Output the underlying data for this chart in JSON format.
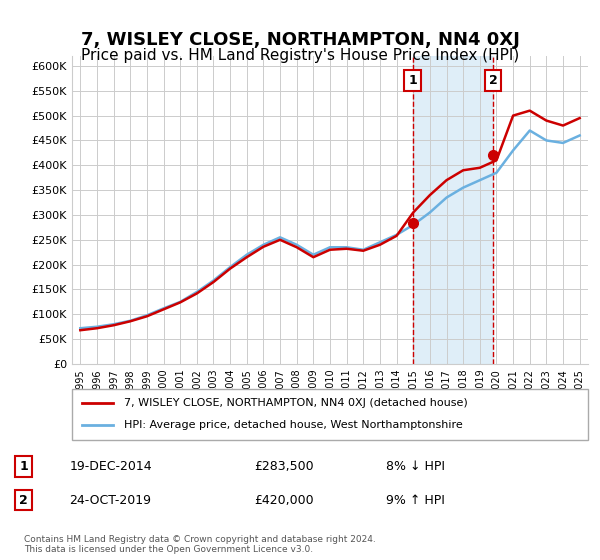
{
  "title": "7, WISLEY CLOSE, NORTHAMPTON, NN4 0XJ",
  "subtitle": "Price paid vs. HM Land Registry's House Price Index (HPI)",
  "title_fontsize": 13,
  "subtitle_fontsize": 11,
  "ylabel": "",
  "ylim": [
    0,
    620000
  ],
  "yticks": [
    0,
    50000,
    100000,
    150000,
    200000,
    250000,
    300000,
    350000,
    400000,
    450000,
    500000,
    550000,
    600000
  ],
  "ytick_labels": [
    "£0",
    "£50K",
    "£100K",
    "£150K",
    "£200K",
    "£250K",
    "£300K",
    "£350K",
    "£400K",
    "£450K",
    "£500K",
    "£550K",
    "£600K"
  ],
  "hpi_color": "#6ab0e0",
  "price_color": "#cc0000",
  "shading_color": "#d8eaf7",
  "grid_color": "#cccccc",
  "annotation1_date": "19-DEC-2014",
  "annotation1_price": "£283,500",
  "annotation1_hpi": "8% ↓ HPI",
  "annotation2_date": "24-OCT-2019",
  "annotation2_price": "£420,000",
  "annotation2_hpi": "9% ↑ HPI",
  "sale1_year": 2014.96,
  "sale1_value": 283500,
  "sale2_year": 2019.81,
  "sale2_value": 420000,
  "legend_label_price": "7, WISLEY CLOSE, NORTHAMPTON, NN4 0XJ (detached house)",
  "legend_label_hpi": "HPI: Average price, detached house, West Northamptonshire",
  "copyright_text": "Contains HM Land Registry data © Crown copyright and database right 2024.\nThis data is licensed under the Open Government Licence v3.0.",
  "hpi_years": [
    1995,
    1996,
    1997,
    1998,
    1999,
    2000,
    2001,
    2002,
    2003,
    2004,
    2005,
    2006,
    2007,
    2008,
    2009,
    2010,
    2011,
    2012,
    2013,
    2014,
    2015,
    2016,
    2017,
    2018,
    2019,
    2020,
    2021,
    2022,
    2023,
    2024,
    2025
  ],
  "hpi_values": [
    72000,
    75000,
    80000,
    87000,
    98000,
    112000,
    125000,
    145000,
    168000,
    195000,
    220000,
    240000,
    255000,
    240000,
    220000,
    235000,
    235000,
    230000,
    245000,
    260000,
    280000,
    305000,
    335000,
    355000,
    370000,
    385000,
    430000,
    470000,
    450000,
    445000,
    460000
  ],
  "price_years": [
    1995,
    1996,
    1997,
    1998,
    1999,
    2000,
    2001,
    2002,
    2003,
    2004,
    2005,
    2006,
    2007,
    2008,
    2009,
    2010,
    2011,
    2012,
    2013,
    2014,
    2015,
    2016,
    2017,
    2018,
    2019,
    2020,
    2021,
    2022,
    2023,
    2024,
    2025
  ],
  "price_values": [
    68000,
    72000,
    78000,
    86000,
    96000,
    110000,
    124000,
    142000,
    165000,
    192000,
    215000,
    236000,
    250000,
    235000,
    215000,
    230000,
    232000,
    228000,
    240000,
    258000,
    305000,
    340000,
    370000,
    390000,
    395000,
    410000,
    500000,
    510000,
    490000,
    480000,
    495000
  ]
}
